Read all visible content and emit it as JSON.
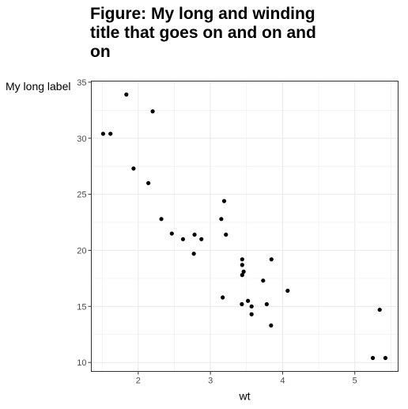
{
  "chart_data": {
    "type": "scatter",
    "title": "Figure: My long and winding title that goes on and on and on",
    "title_lines": [
      "Figure: My long and winding",
      "title that goes on and on and",
      "on"
    ],
    "xlabel": "wt",
    "ylabel": "My long label",
    "xlim": [
      1.35,
      5.6
    ],
    "ylim": [
      9.2,
      35.1
    ],
    "x_ticks": [
      2,
      3,
      4,
      5
    ],
    "y_ticks": [
      10,
      15,
      20,
      25,
      30,
      35
    ],
    "grid": true,
    "legend": "none",
    "points": [
      [
        1.513,
        30.4
      ],
      [
        1.615,
        30.4
      ],
      [
        1.835,
        33.9
      ],
      [
        1.935,
        27.3
      ],
      [
        2.14,
        26.0
      ],
      [
        2.2,
        32.4
      ],
      [
        2.32,
        22.8
      ],
      [
        2.465,
        21.5
      ],
      [
        2.62,
        21.0
      ],
      [
        2.77,
        19.7
      ],
      [
        2.78,
        21.4
      ],
      [
        2.875,
        21.0
      ],
      [
        3.15,
        22.8
      ],
      [
        3.17,
        15.8
      ],
      [
        3.19,
        24.4
      ],
      [
        3.215,
        21.4
      ],
      [
        3.435,
        15.2
      ],
      [
        3.44,
        18.7
      ],
      [
        3.44,
        17.8
      ],
      [
        3.44,
        19.2
      ],
      [
        3.46,
        18.1
      ],
      [
        3.52,
        15.5
      ],
      [
        3.57,
        15.0
      ],
      [
        3.57,
        14.3
      ],
      [
        3.73,
        17.3
      ],
      [
        3.78,
        15.2
      ],
      [
        3.84,
        13.3
      ],
      [
        3.845,
        19.2
      ],
      [
        4.07,
        16.4
      ],
      [
        5.25,
        10.4
      ],
      [
        5.345,
        14.7
      ],
      [
        5.424,
        10.4
      ]
    ]
  },
  "colors": {
    "point": "#000000",
    "grid": "#ebebeb",
    "panel_border": "#333333",
    "tick_label": "#4d4d4d"
  }
}
